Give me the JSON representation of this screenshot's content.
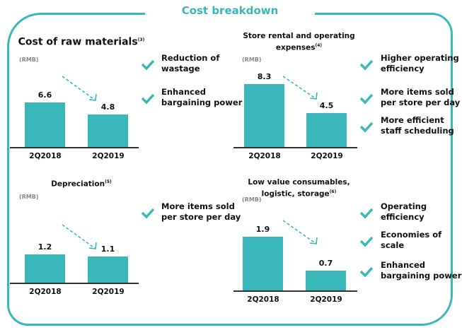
{
  "title": "Cost breakdown",
  "colors": {
    "accent": "#3ab7b9"
  },
  "chart_data": [
    {
      "type": "bar",
      "title": "Cost of raw materials",
      "footnote": "(3)",
      "unit": "(RMB)",
      "categories": [
        "2Q2018",
        "2Q2019"
      ],
      "values": [
        6.6,
        4.8
      ],
      "labels": [
        "6.6",
        "4.8"
      ],
      "reasons": [
        "Reduction of wastage",
        "Enhanced bargaining power"
      ]
    },
    {
      "type": "bar",
      "title": "Store rental and operating expenses",
      "footnote": "(4)",
      "unit": "(RMB)",
      "categories": [
        "2Q2018",
        "2Q2019"
      ],
      "values": [
        8.3,
        4.5
      ],
      "labels": [
        "8.3",
        "4.5"
      ],
      "reasons": [
        "Higher operating efficiency",
        "More items sold per store per day",
        "More efficient staff scheduling"
      ]
    },
    {
      "type": "bar",
      "title": "Depreciation",
      "footnote": "(5)",
      "unit": "(RMB)",
      "categories": [
        "2Q2018",
        "2Q2019"
      ],
      "values": [
        1.2,
        1.1
      ],
      "labels": [
        "1.2",
        "1.1"
      ],
      "reasons": [
        "More items sold per store per day"
      ]
    },
    {
      "type": "bar",
      "title": "Low value consumables, logistic, storage",
      "footnote": "(6)",
      "unit": "(RMB)",
      "categories": [
        "2Q2018",
        "2Q2019"
      ],
      "values": [
        1.9,
        0.7
      ],
      "labels": [
        "1.9",
        "0.7"
      ],
      "reasons": [
        "Operating efficiency",
        "Economies of scale",
        "Enhanced bargaining power"
      ]
    }
  ]
}
